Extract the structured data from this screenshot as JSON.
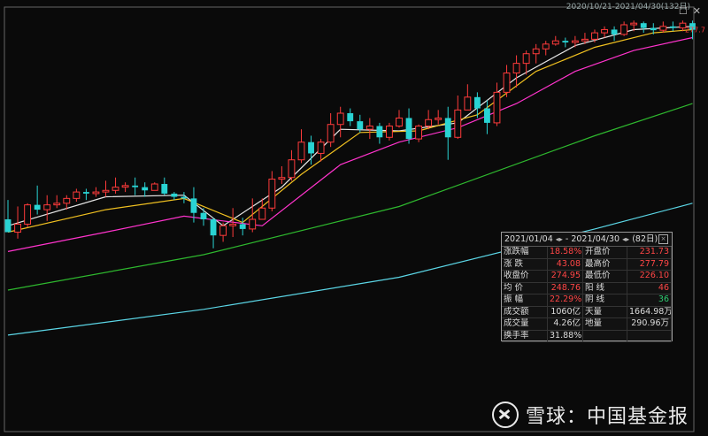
{
  "header_range": "2020/10/21-2021/04/30(132日)",
  "price_tag": "277.7",
  "stats_panel": {
    "range_start": "2021/01/04",
    "range_sep": "-",
    "range_end": "2021/04/30",
    "days": "(82日)",
    "rows": [
      {
        "l1": "涨跌幅",
        "v1": "18.58%",
        "l2": "开盘价",
        "v2": "231.73"
      },
      {
        "l1": "涨  跌",
        "v1": "43.08",
        "l2": "最高价",
        "v2": "277.79"
      },
      {
        "l1": "收盘价",
        "v1": "274.95",
        "l2": "最低价",
        "v2": "226.10"
      },
      {
        "l1": "均  价",
        "v1": "248.76",
        "l2": "阳  线",
        "v2": "46"
      },
      {
        "l1": "振  幅",
        "v1": "22.29%",
        "l2": "阴  线",
        "v2": "36"
      },
      {
        "l1": "成交额",
        "v1": "1060亿",
        "l2": "天量",
        "v2": "1664.98万"
      },
      {
        "l1": "成交量",
        "v1": "4.26亿",
        "l2": "地量",
        "v2": "290.96万"
      },
      {
        "l1": "换手率",
        "v1": "31.88%",
        "l2": "",
        "v2": ""
      }
    ]
  },
  "watermark": {
    "brand": "雪球",
    "sep": "：",
    "account": "中国基金报"
  },
  "colors": {
    "up": "#ff3b3b",
    "down": "#29d3d3",
    "ma5": "#e6e6e6",
    "ma10": "#f0c020",
    "ma20": "#ff33cc",
    "ma60": "#2eb82e",
    "ma120": "#5bd6e6",
    "frame": "#666666"
  },
  "chart_data": {
    "type": "candlestick",
    "ylim": [
      150,
      282
    ],
    "candles": [
      [
        0,
        216.0,
        212.0,
        222.0,
        212.0
      ],
      [
        1,
        212.0,
        214.5,
        220.0,
        210.0
      ],
      [
        2,
        214.5,
        220.5,
        221.0,
        213.5
      ],
      [
        3,
        220.5,
        219.0,
        226.5,
        217.5
      ],
      [
        4,
        219.0,
        220.5,
        223.5,
        215.5
      ],
      [
        5,
        220.5,
        221.0,
        223.5,
        219.5
      ],
      [
        6,
        221.0,
        222.5,
        223.5,
        219.0
      ],
      [
        7,
        222.5,
        224.5,
        225.5,
        221.5
      ],
      [
        8,
        224.5,
        224.0,
        225.5,
        222.0
      ],
      [
        9,
        224.0,
        224.5,
        226.0,
        223.0
      ],
      [
        10,
        224.5,
        225.0,
        228.0,
        223.0
      ],
      [
        11,
        225.0,
        226.0,
        229.0,
        224.0
      ],
      [
        12,
        226.0,
        226.5,
        227.5,
        224.5
      ],
      [
        13,
        226.5,
        226.0,
        229.0,
        223.5
      ],
      [
        14,
        226.0,
        225.0,
        227.5,
        223.0
      ],
      [
        15,
        225.0,
        227.0,
        227.5,
        225.0
      ],
      [
        16,
        227.0,
        224.0,
        229.0,
        223.5
      ],
      [
        17,
        224.0,
        223.0,
        224.5,
        222.0
      ],
      [
        18,
        223.0,
        222.5,
        224.5,
        221.0
      ],
      [
        19,
        222.5,
        218.0,
        226.0,
        215.0
      ],
      [
        20,
        218.0,
        216.0,
        219.5,
        214.0
      ],
      [
        21,
        216.0,
        211.0,
        216.5,
        207.0
      ],
      [
        22,
        211.0,
        214.0,
        215.0,
        209.0
      ],
      [
        23,
        214.0,
        214.5,
        219.5,
        210.5
      ],
      [
        24,
        214.5,
        213.0,
        216.5,
        211.0
      ],
      [
        25,
        213.0,
        216.0,
        222.5,
        212.0
      ],
      [
        26,
        216.0,
        219.5,
        222.5,
        218.0
      ],
      [
        27,
        219.5,
        228.5,
        231.0,
        218.5
      ],
      [
        28,
        228.5,
        229.0,
        232.5,
        227.0
      ],
      [
        29,
        229.0,
        234.5,
        237.5,
        228.0
      ],
      [
        30,
        234.5,
        240.0,
        244.0,
        233.5
      ],
      [
        31,
        240.0,
        236.5,
        242.0,
        233.0
      ],
      [
        32,
        236.5,
        240.0,
        241.0,
        234.0
      ],
      [
        33,
        240.0,
        245.5,
        249.0,
        238.5
      ],
      [
        34,
        245.5,
        249.0,
        251.0,
        241.5
      ],
      [
        35,
        249.0,
        246.5,
        250.5,
        245.0
      ],
      [
        36,
        246.5,
        244.0,
        248.5,
        243.0
      ],
      [
        37,
        244.0,
        245.0,
        247.5,
        241.0
      ],
      [
        38,
        245.0,
        241.5,
        246.0,
        239.5
      ],
      [
        39,
        241.5,
        245.0,
        246.0,
        240.5
      ],
      [
        40,
        245.0,
        247.5,
        250.0,
        244.5
      ],
      [
        41,
        247.5,
        241.0,
        250.5,
        239.5
      ],
      [
        42,
        241.0,
        245.0,
        245.5,
        240.0
      ],
      [
        43,
        245.0,
        247.0,
        250.0,
        244.0
      ],
      [
        44,
        247.0,
        247.5,
        250.0,
        245.5
      ],
      [
        45,
        247.5,
        241.5,
        251.0,
        234.5
      ],
      [
        46,
        241.5,
        250.0,
        254.5,
        241.0
      ],
      [
        47,
        250.0,
        254.0,
        258.0,
        250.0
      ],
      [
        48,
        254.0,
        250.5,
        255.5,
        247.5
      ],
      [
        49,
        250.5,
        246.0,
        253.0,
        242.5
      ],
      [
        50,
        246.0,
        255.5,
        258.5,
        245.0
      ],
      [
        51,
        255.5,
        261.5,
        264.0,
        254.0
      ],
      [
        52,
        261.5,
        264.5,
        267.0,
        257.0
      ],
      [
        53,
        264.5,
        267.5,
        268.5,
        261.0
      ],
      [
        54,
        267.5,
        269.0,
        270.5,
        264.5
      ],
      [
        55,
        269.0,
        270.5,
        271.5,
        267.0
      ],
      [
        56,
        270.5,
        271.5,
        273.0,
        270.0
      ],
      [
        57,
        271.5,
        271.0,
        272.5,
        269.5
      ],
      [
        58,
        271.0,
        271.5,
        273.0,
        269.5
      ],
      [
        59,
        271.5,
        272.0,
        274.0,
        270.5
      ],
      [
        60,
        272.0,
        274.0,
        275.0,
        271.0
      ],
      [
        61,
        274.0,
        275.0,
        276.0,
        272.5
      ],
      [
        62,
        275.0,
        273.5,
        276.0,
        271.5
      ],
      [
        63,
        273.5,
        276.5,
        277.5,
        273.0
      ],
      [
        64,
        276.5,
        277.0,
        277.8,
        274.5
      ],
      [
        65,
        277.0,
        275.5,
        277.5,
        274.0
      ],
      [
        66,
        275.5,
        274.8,
        277.0,
        273.5
      ],
      [
        67,
        274.8,
        276.0,
        277.5,
        274.0
      ],
      [
        68,
        276.0,
        275.5,
        277.5,
        274.5
      ],
      [
        69,
        275.5,
        277.0,
        277.8,
        274.5
      ],
      [
        70,
        277.0,
        274.95,
        277.79,
        272.0
      ]
    ],
    "ma": [
      {
        "name": "MA5",
        "values": [
          [
            0,
            214.0
          ],
          [
            10,
            223.0
          ],
          [
            18,
            223.5
          ],
          [
            22,
            214.0
          ],
          [
            28,
            226.0
          ],
          [
            34,
            244.0
          ],
          [
            40,
            243.5
          ],
          [
            46,
            246.0
          ],
          [
            52,
            260.0
          ],
          [
            58,
            270.0
          ],
          [
            64,
            275.0
          ],
          [
            70,
            276.0
          ]
        ]
      },
      {
        "name": "MA10",
        "values": [
          [
            0,
            212.0
          ],
          [
            10,
            219.0
          ],
          [
            18,
            222.5
          ],
          [
            24,
            215.0
          ],
          [
            30,
            230.0
          ],
          [
            36,
            243.0
          ],
          [
            42,
            243.5
          ],
          [
            48,
            248.5
          ],
          [
            54,
            262.0
          ],
          [
            60,
            269.5
          ],
          [
            66,
            274.0
          ],
          [
            70,
            275.0
          ]
        ]
      },
      {
        "name": "MA20",
        "values": [
          [
            0,
            206.0
          ],
          [
            10,
            212.0
          ],
          [
            18,
            217.0
          ],
          [
            26,
            214.0
          ],
          [
            34,
            233.0
          ],
          [
            40,
            240.0
          ],
          [
            46,
            244.5
          ],
          [
            52,
            252.0
          ],
          [
            58,
            262.0
          ],
          [
            64,
            268.5
          ],
          [
            70,
            272.5
          ]
        ]
      },
      {
        "name": "MA60",
        "values": [
          [
            0,
            194.0
          ],
          [
            20,
            205.0
          ],
          [
            40,
            220.0
          ],
          [
            60,
            242.0
          ],
          [
            70,
            252.0
          ]
        ]
      },
      {
        "name": "MA120",
        "values": [
          [
            0,
            180.0
          ],
          [
            20,
            188.0
          ],
          [
            40,
            198.0
          ],
          [
            60,
            213.0
          ],
          [
            70,
            221.0
          ]
        ]
      }
    ]
  }
}
